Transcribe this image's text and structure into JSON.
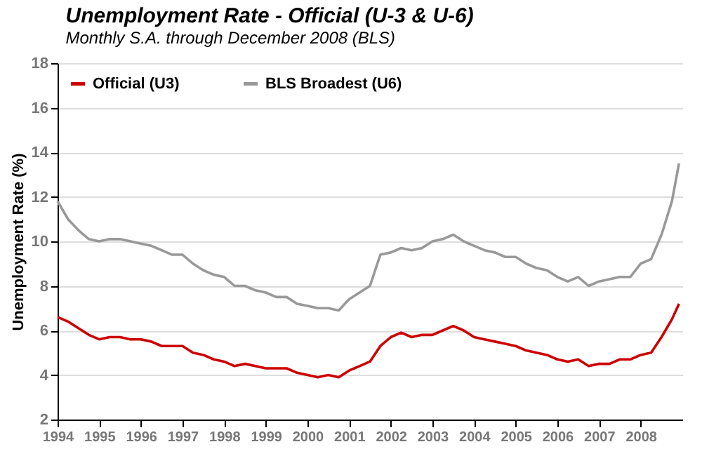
{
  "chart_data": {
    "type": "line",
    "title": "Unemployment Rate - Official (U-3 & U-6)",
    "subtitle": "Monthly S.A. through December 2008 (BLS)",
    "ylabel": "Unemployment Rate (%)",
    "x": [
      1994.0,
      1994.25,
      1994.5,
      1994.75,
      1995.0,
      1995.25,
      1995.5,
      1995.75,
      1996.0,
      1996.25,
      1996.5,
      1996.75,
      1997.0,
      1997.25,
      1997.5,
      1997.75,
      1998.0,
      1998.25,
      1998.5,
      1998.75,
      1999.0,
      1999.25,
      1999.5,
      1999.75,
      2000.0,
      2000.25,
      2000.5,
      2000.75,
      2001.0,
      2001.25,
      2001.5,
      2001.75,
      2002.0,
      2002.25,
      2002.5,
      2002.75,
      2003.0,
      2003.25,
      2003.5,
      2003.75,
      2004.0,
      2004.25,
      2004.5,
      2004.75,
      2005.0,
      2005.25,
      2005.5,
      2005.75,
      2006.0,
      2006.25,
      2006.5,
      2006.75,
      2007.0,
      2007.25,
      2007.5,
      2007.75,
      2008.0,
      2008.25,
      2008.5,
      2008.75,
      2008.92
    ],
    "series": [
      {
        "name": "Official (U3)",
        "color": "#cc0000",
        "values": [
          6.6,
          6.4,
          6.1,
          5.8,
          5.6,
          5.7,
          5.7,
          5.6,
          5.6,
          5.5,
          5.3,
          5.3,
          5.3,
          5.0,
          4.9,
          4.7,
          4.6,
          4.4,
          4.5,
          4.4,
          4.3,
          4.3,
          4.3,
          4.1,
          4.0,
          3.9,
          4.0,
          3.9,
          4.2,
          4.4,
          4.6,
          5.3,
          5.7,
          5.9,
          5.7,
          5.8,
          5.8,
          6.0,
          6.2,
          6.0,
          5.7,
          5.6,
          5.5,
          5.4,
          5.3,
          5.1,
          5.0,
          4.9,
          4.7,
          4.6,
          4.7,
          4.4,
          4.5,
          4.5,
          4.7,
          4.7,
          4.9,
          5.0,
          5.7,
          6.5,
          7.2
        ]
      },
      {
        "name": "BLS Broadest (U6)",
        "color": "#999999",
        "values": [
          11.8,
          11.0,
          10.5,
          10.1,
          10.0,
          10.1,
          10.1,
          10.0,
          9.9,
          9.8,
          9.6,
          9.4,
          9.4,
          9.0,
          8.7,
          8.5,
          8.4,
          8.0,
          8.0,
          7.8,
          7.7,
          7.5,
          7.5,
          7.2,
          7.1,
          7.0,
          7.0,
          6.9,
          7.4,
          7.7,
          8.0,
          9.4,
          9.5,
          9.7,
          9.6,
          9.7,
          10.0,
          10.1,
          10.3,
          10.0,
          9.8,
          9.6,
          9.5,
          9.3,
          9.3,
          9.0,
          8.8,
          8.7,
          8.4,
          8.2,
          8.4,
          8.0,
          8.2,
          8.3,
          8.4,
          8.4,
          9.0,
          9.2,
          10.3,
          11.8,
          13.5
        ]
      }
    ],
    "xlim": [
      1994,
      2009
    ],
    "xticks": [
      1994,
      1995,
      1996,
      1997,
      1998,
      1999,
      2000,
      2001,
      2002,
      2003,
      2004,
      2005,
      2006,
      2007,
      2008
    ],
    "ylim": [
      2,
      18
    ],
    "yticks": [
      2,
      4,
      6,
      8,
      10,
      12,
      14,
      16,
      18
    ],
    "grid": "y",
    "legend": "top left",
    "marker": "none",
    "line_style": "solid"
  }
}
